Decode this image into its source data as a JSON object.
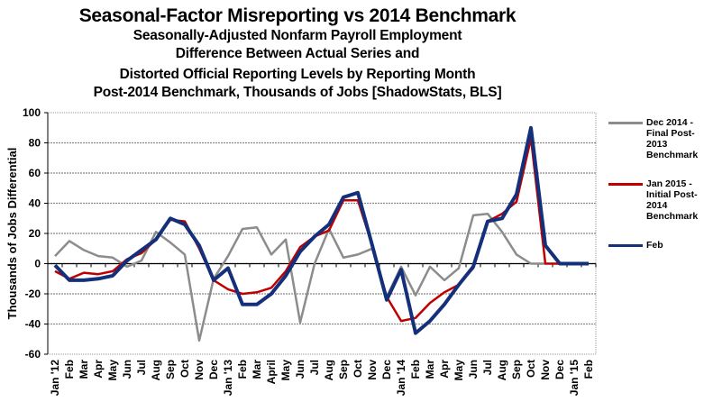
{
  "chart_data": {
    "type": "line",
    "title": "Seasonal-Factor Misreporting vs 2014 Benchmark",
    "subtitle_lines": [
      "Seasonally-Adjusted Nonfarm Payroll Employment",
      "Difference Between Actual Series and",
      "Distorted Official  Reporting Levels by Reporting Month",
      "Post-2014 Benchmark, Thousands of Jobs [ShadowStats, BLS]"
    ],
    "xlabel": "",
    "ylabel": "Thousands of Jobs Differential",
    "ylim": [
      -60,
      100
    ],
    "yticks": [
      -60,
      -40,
      -20,
      0,
      20,
      40,
      60,
      80,
      100
    ],
    "grid": true,
    "legend_position": "right",
    "x": [
      "Jan '12",
      "Feb",
      "Mar",
      "Apr",
      "May",
      "Jun",
      "Jul",
      "Aug",
      "Sep",
      "Oct",
      "Nov",
      "Dec",
      "Jan '13",
      "Feb",
      "Mar",
      "April",
      "May",
      "Jun",
      "Jul",
      "Aug",
      "Sep",
      "Oct",
      "Nov",
      "Dec",
      "Jan '14",
      "Feb",
      "Mar",
      "Apr",
      "May",
      "Jun",
      "Jul",
      "Aug",
      "Sep",
      "Oct",
      "Nov",
      "Dec",
      "Jan '15",
      "Feb"
    ],
    "series": [
      {
        "name": "Dec 2014 - Final Post-2013 Benchmark",
        "color": "#8c8c8c",
        "values": [
          5,
          15,
          9,
          5,
          4,
          -2,
          2,
          21,
          14,
          6,
          -51,
          -10,
          5,
          23,
          24,
          6,
          16,
          -39,
          0,
          23,
          4,
          6,
          10,
          -22,
          -2,
          -21,
          -2,
          -11,
          -3,
          32,
          33,
          21,
          6,
          0,
          0,
          null,
          null,
          null
        ]
      },
      {
        "name": "Jan 2015 - Initial Post-2014 Benchmark",
        "color": "#c00000",
        "values": [
          -5,
          -10,
          -6,
          -7,
          -5,
          3,
          7,
          16,
          29,
          28,
          10,
          -11,
          -17,
          -20,
          -19,
          -16,
          -5,
          11,
          18,
          22,
          42,
          42,
          12,
          -22,
          -38,
          -36,
          -26,
          -19,
          -14,
          -3,
          28,
          33,
          41,
          83,
          0,
          0,
          0,
          null
        ]
      },
      {
        "name": "Feb",
        "color": "#14307a",
        "values": [
          -1,
          -11,
          -11,
          -10,
          -8,
          2,
          9,
          16,
          30,
          26,
          12,
          -11,
          -3,
          -27,
          -27,
          -20,
          -8,
          8,
          18,
          26,
          44,
          47,
          12,
          -24,
          -4,
          -46,
          -38,
          -27,
          -14,
          -2,
          28,
          30,
          46,
          90,
          12,
          0,
          0,
          0
        ]
      }
    ]
  },
  "legend": {
    "items": [
      {
        "label": "Dec 2014 - Final Post-2013 Benchmark",
        "color": "#8c8c8c"
      },
      {
        "label": "Jan 2015 - Initial Post-2014 Benchmark",
        "color": "#c00000"
      },
      {
        "label": "Feb",
        "color": "#14307a"
      }
    ]
  }
}
